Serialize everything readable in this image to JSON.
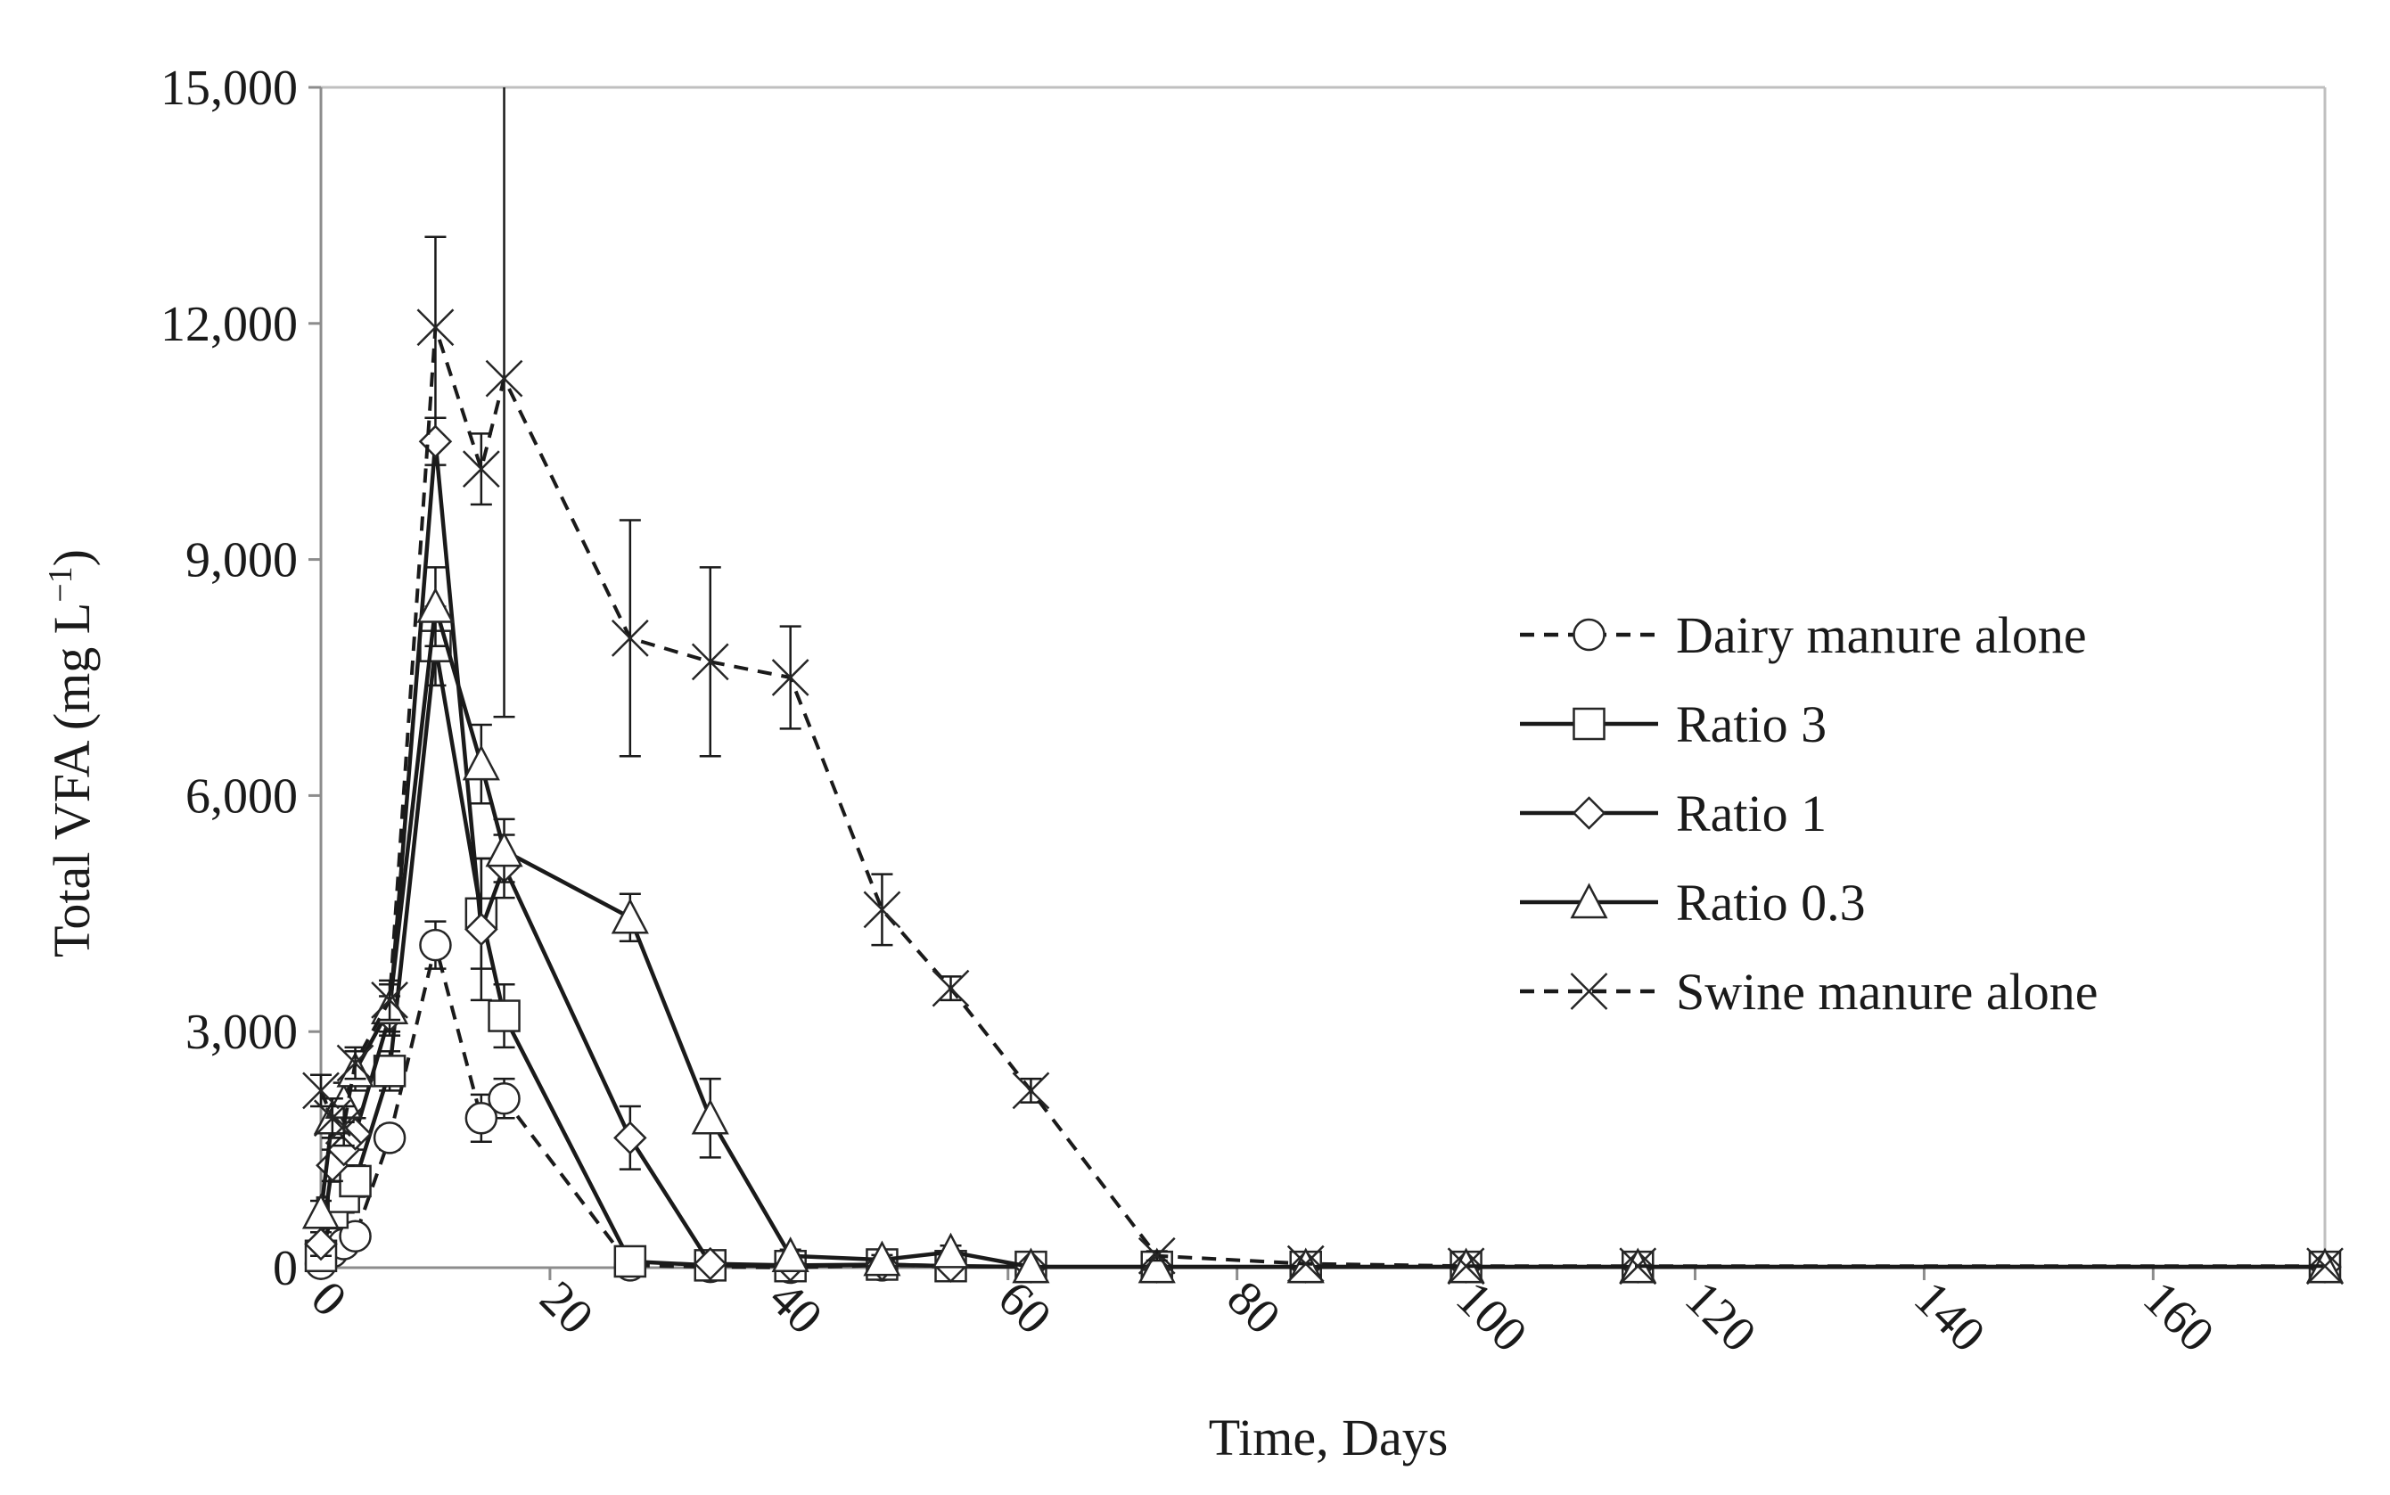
{
  "chart_data": {
    "type": "line",
    "title": "",
    "xlabel": "Time, Days",
    "ylabel_main": "Total VFA (mg L",
    "ylabel_sup": "−1",
    "ylabel_close": ")",
    "xlim": [
      0,
      175
    ],
    "ylim": [
      0,
      15000
    ],
    "x_ticks": [
      0,
      20,
      40,
      60,
      80,
      100,
      120,
      140,
      160
    ],
    "x_tick_labels": [
      "0",
      "20",
      "40",
      "60",
      "80",
      "100",
      "120",
      "140",
      "160"
    ],
    "y_ticks": [
      0,
      3000,
      6000,
      9000,
      12000,
      15000
    ],
    "y_tick_labels": [
      "0",
      "3,000",
      "6,000",
      "9,000",
      "12,000",
      "15,000"
    ],
    "grid": false,
    "legend_position": "right",
    "series": [
      {
        "name": "Dairy manure alone",
        "marker": "circle",
        "line_style": "dashed",
        "x": [
          0,
          1,
          2,
          3,
          6,
          10,
          14,
          16,
          27,
          34,
          41,
          49,
          55,
          62,
          73,
          86,
          100,
          115,
          175
        ],
        "y": [
          50,
          200,
          300,
          400,
          1650,
          4100,
          1900,
          2150,
          30,
          10,
          0,
          30,
          20,
          10,
          10,
          10,
          10,
          10,
          10
        ],
        "err": [
          100,
          100,
          100,
          100,
          150,
          300,
          300,
          250,
          60,
          40,
          30,
          40,
          30,
          20,
          20,
          20,
          20,
          20,
          20
        ]
      },
      {
        "name": "Ratio 3",
        "marker": "square",
        "line_style": "solid",
        "x": [
          0,
          1,
          2,
          3,
          6,
          10,
          14,
          16,
          27,
          34,
          41,
          49,
          55,
          62,
          73,
          86,
          100,
          115,
          175
        ],
        "y": [
          150,
          700,
          900,
          1100,
          2500,
          7900,
          4500,
          3200,
          80,
          30,
          20,
          40,
          20,
          10,
          10,
          10,
          10,
          10,
          10
        ],
        "err": [
          100,
          200,
          200,
          200,
          250,
          500,
          700,
          400,
          80,
          40,
          30,
          40,
          30,
          20,
          20,
          20,
          20,
          20,
          20
        ]
      },
      {
        "name": "Ratio 1",
        "marker": "diamond",
        "line_style": "solid",
        "x": [
          0,
          1,
          2,
          3,
          6,
          10,
          14,
          16,
          27,
          34,
          41,
          49,
          55,
          62,
          73,
          86,
          100,
          115,
          175
        ],
        "y": [
          300,
          1300,
          1500,
          1700,
          3200,
          10500,
          4300,
          5100,
          1650,
          50,
          30,
          40,
          20,
          10,
          10,
          10,
          10,
          10,
          10
        ],
        "err": [
          150,
          200,
          200,
          200,
          250,
          300,
          900,
          400,
          400,
          60,
          40,
          40,
          30,
          20,
          20,
          20,
          20,
          20,
          20
        ]
      },
      {
        "name": "Ratio 0.3",
        "marker": "triangle",
        "line_style": "solid",
        "x": [
          0,
          1,
          2,
          3,
          6,
          10,
          14,
          16,
          27,
          34,
          41,
          49,
          55,
          62,
          73,
          86,
          100,
          115,
          175
        ],
        "y": [
          700,
          1900,
          2100,
          2500,
          3300,
          8400,
          6400,
          5300,
          4450,
          1900,
          150,
          100,
          200,
          10,
          10,
          10,
          10,
          10,
          10
        ],
        "err": [
          150,
          250,
          250,
          250,
          300,
          500,
          500,
          400,
          300,
          500,
          80,
          60,
          80,
          20,
          20,
          20,
          20,
          20,
          20
        ]
      },
      {
        "name": "Swine manure alone",
        "marker": "x",
        "line_style": "dashed",
        "x": [
          0,
          1,
          2,
          3,
          6,
          10,
          14,
          16,
          27,
          34,
          41,
          49,
          55,
          62,
          73,
          86,
          100,
          115,
          175
        ],
        "y": [
          2250,
          1900,
          1800,
          2600,
          3400,
          11950,
          10150,
          11300,
          8000,
          7700,
          7500,
          4550,
          3550,
          2250,
          150,
          50,
          20,
          20,
          20
        ],
        "err": [
          200,
          250,
          250,
          200,
          250,
          1150,
          450,
          4300,
          1500,
          1200,
          650,
          450,
          150,
          150,
          60,
          40,
          30,
          30,
          30
        ]
      }
    ]
  }
}
